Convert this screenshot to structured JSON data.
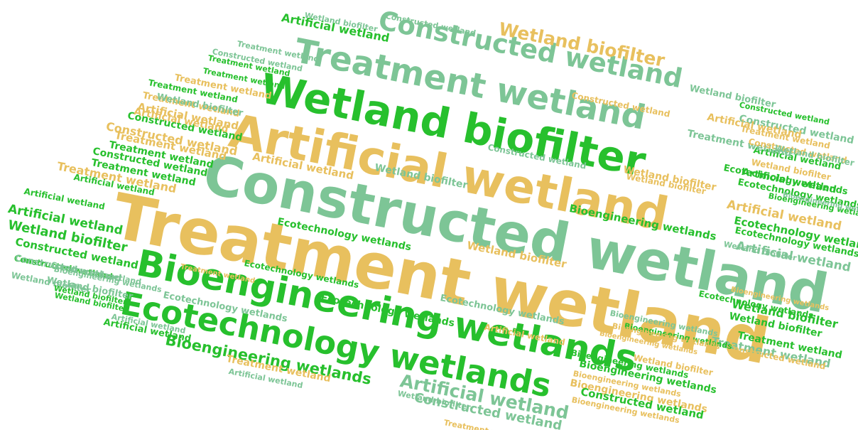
{
  "colors": {
    "green": "#27c02d",
    "sage": "#7dc596",
    "gold": "#e8c05e"
  },
  "words": [
    {
      "text": "Treatment wetland",
      "color": "gold"
    },
    {
      "text": "Constructed wetland",
      "color": "sage"
    },
    {
      "text": "Artificial wetland",
      "color": "gold"
    },
    {
      "text": "Wetland biofilter",
      "color": "green"
    },
    {
      "text": "Treatment wetland",
      "color": "sage"
    },
    {
      "text": "Constructed wetland",
      "color": "sage"
    },
    {
      "text": "Wetland biofilter",
      "color": "gold"
    },
    {
      "text": "Bioengineering wetlands",
      "color": "green"
    },
    {
      "text": "Ecotechnology wetlands",
      "color": "green"
    },
    {
      "text": "Artificial wetland",
      "color": "sage"
    },
    {
      "text": "Constructed wetland",
      "color": "sage"
    },
    {
      "text": "Bioengineering wetlands",
      "color": "green"
    },
    {
      "text": "Artificial wetland",
      "color": "green"
    },
    {
      "text": "Wetland biofilter",
      "color": "green"
    },
    {
      "text": "Constructed wetland",
      "color": "gold"
    },
    {
      "text": "Wetland biofilter",
      "color": "sage"
    },
    {
      "text": "Constructed wetland",
      "color": "green"
    },
    {
      "text": "Constructed wetland",
      "color": "green"
    },
    {
      "text": "Artificial wetland",
      "color": "gold"
    },
    {
      "text": "Treatment wetland",
      "color": "gold"
    },
    {
      "text": "Treatment wetland",
      "color": "gold"
    },
    {
      "text": "Constructed wetland",
      "color": "green"
    },
    {
      "text": "Treatment wetland",
      "color": "green"
    },
    {
      "text": "Constructed wetland",
      "color": "green"
    },
    {
      "text": "Treatment wetland",
      "color": "gold"
    },
    {
      "text": "Artificial wetland",
      "color": "green"
    },
    {
      "text": "Treatment wetland",
      "color": "green"
    },
    {
      "text": "Artificial wetland",
      "color": "green"
    },
    {
      "text": "Wetland biofilter",
      "color": "green"
    },
    {
      "text": "Constructed wetland",
      "color": "sage"
    },
    {
      "text": "Constructed wetland",
      "color": "sage"
    },
    {
      "text": "Bioengineering wetlands",
      "color": "sage"
    },
    {
      "text": "Wetland biofilter",
      "color": "sage"
    },
    {
      "text": "Wetland biofilter",
      "color": "green"
    },
    {
      "text": "Artificial wetland",
      "color": "gold"
    },
    {
      "text": "Treatment wetland",
      "color": "green"
    },
    {
      "text": "Wetland biofilter",
      "color": "sage"
    },
    {
      "text": "Constructed wetland",
      "color": "sage"
    },
    {
      "text": "Artificial wetland",
      "color": "gold"
    },
    {
      "text": "Treatment wetland",
      "color": "gold"
    },
    {
      "text": "Artificial wetland",
      "color": "green"
    },
    {
      "text": "Treatment wetland",
      "color": "sage"
    },
    {
      "text": "Constructed wetland",
      "color": "gold"
    },
    {
      "text": "Wetland biofilter",
      "color": "sage"
    },
    {
      "text": "Wetland biofilter",
      "color": "gold"
    },
    {
      "text": "Ecotechnology wetlands",
      "color": "green"
    },
    {
      "text": "Wetland biofilter",
      "color": "gold"
    },
    {
      "text": "Wetland biofilter",
      "color": "sage"
    },
    {
      "text": "Bioengineering wetlands",
      "color": "green"
    },
    {
      "text": "Ecotechnology wetlands",
      "color": "green"
    },
    {
      "text": "Ecotechnology wetlands",
      "color": "green"
    },
    {
      "text": "Wetland biofilter",
      "color": "gold"
    },
    {
      "text": "Artificial wetland",
      "color": "gold"
    },
    {
      "text": "Ecotechnology wetlands",
      "color": "green"
    },
    {
      "text": "Wetland biofilter",
      "color": "sage"
    },
    {
      "text": "Wetland biofilter",
      "color": "green"
    },
    {
      "text": "Bioengineering wetlands",
      "color": "gold"
    },
    {
      "text": "Artificial wetland",
      "color": "green"
    },
    {
      "text": "Ecotechnology wetlands",
      "color": "green"
    },
    {
      "text": "Wetland biofilter",
      "color": "green"
    },
    {
      "text": "Treatment wetland",
      "color": "green"
    },
    {
      "text": "Artificial wetland",
      "color": "gold"
    },
    {
      "text": "Ecotechnology wetlands",
      "color": "green"
    },
    {
      "text": "Artificial wetland",
      "color": "sage"
    },
    {
      "text": "Treatment wetland",
      "color": "sage"
    },
    {
      "text": "Bioengineering wetlands",
      "color": "green"
    },
    {
      "text": "Constructed wetland",
      "color": "gold"
    },
    {
      "text": "Bioengineering wetlands",
      "color": "green"
    },
    {
      "text": "Ecotechnology wetlands",
      "color": "green"
    },
    {
      "text": "Bioengineering wetlands",
      "color": "gold"
    },
    {
      "text": "Bioengineering wetlands",
      "color": "green"
    },
    {
      "text": "Ecotechnology wetlands",
      "color": "sage"
    },
    {
      "text": "Bioengineering wetlands",
      "color": "sage"
    },
    {
      "text": "Bioengineering wetlands",
      "color": "gold"
    },
    {
      "text": "Treatment wetland",
      "color": "gold"
    },
    {
      "text": "Artificial wetland",
      "color": "gold"
    },
    {
      "text": "Treatment wetland",
      "color": "gold"
    },
    {
      "text": "Ecotechnology wetlands",
      "color": "sage"
    },
    {
      "text": "Wetland biofilter",
      "color": "gold"
    },
    {
      "text": "Bioengineering wetlands",
      "color": "gold"
    },
    {
      "text": "Constructed wetland",
      "color": "sage"
    },
    {
      "text": "Wetland biofilter",
      "color": "sage"
    },
    {
      "text": "Artificial wetland",
      "color": "green"
    },
    {
      "text": "Constructed wetland",
      "color": "green"
    },
    {
      "text": "Wetland biofilter",
      "color": "gold"
    },
    {
      "text": "Bioengineering wetlands",
      "color": "gold"
    },
    {
      "text": "Wetland biofilter",
      "color": "sage"
    },
    {
      "text": "Constructed wetland",
      "color": "gold"
    },
    {
      "text": "Ecotechnology wetlands",
      "color": "green"
    },
    {
      "text": "Constructed wetland",
      "color": "sage"
    },
    {
      "text": "Bioengineering wetlands",
      "color": "green"
    },
    {
      "text": "Treatment wetland",
      "color": "gold"
    },
    {
      "text": "Artificial wetland",
      "color": "green"
    },
    {
      "text": "Treatment wetland",
      "color": "sage"
    },
    {
      "text": "Constructed wetland",
      "color": "sage"
    },
    {
      "text": "Bioengineering wetlands",
      "color": "sage"
    },
    {
      "text": "Wetland biofilter",
      "color": "sage"
    },
    {
      "text": "Artificial wetland",
      "color": "sage"
    },
    {
      "text": "Treatment wetland",
      "color": "gold"
    },
    {
      "text": "Constructed wetland",
      "color": "green"
    },
    {
      "text": "Artificial wetland",
      "color": "sage"
    },
    {
      "text": "Treatment wetland",
      "color": "green"
    },
    {
      "text": "Treatment wetland",
      "color": "green"
    },
    {
      "text": "Bioengineering wetlands",
      "color": "gold"
    }
  ]
}
